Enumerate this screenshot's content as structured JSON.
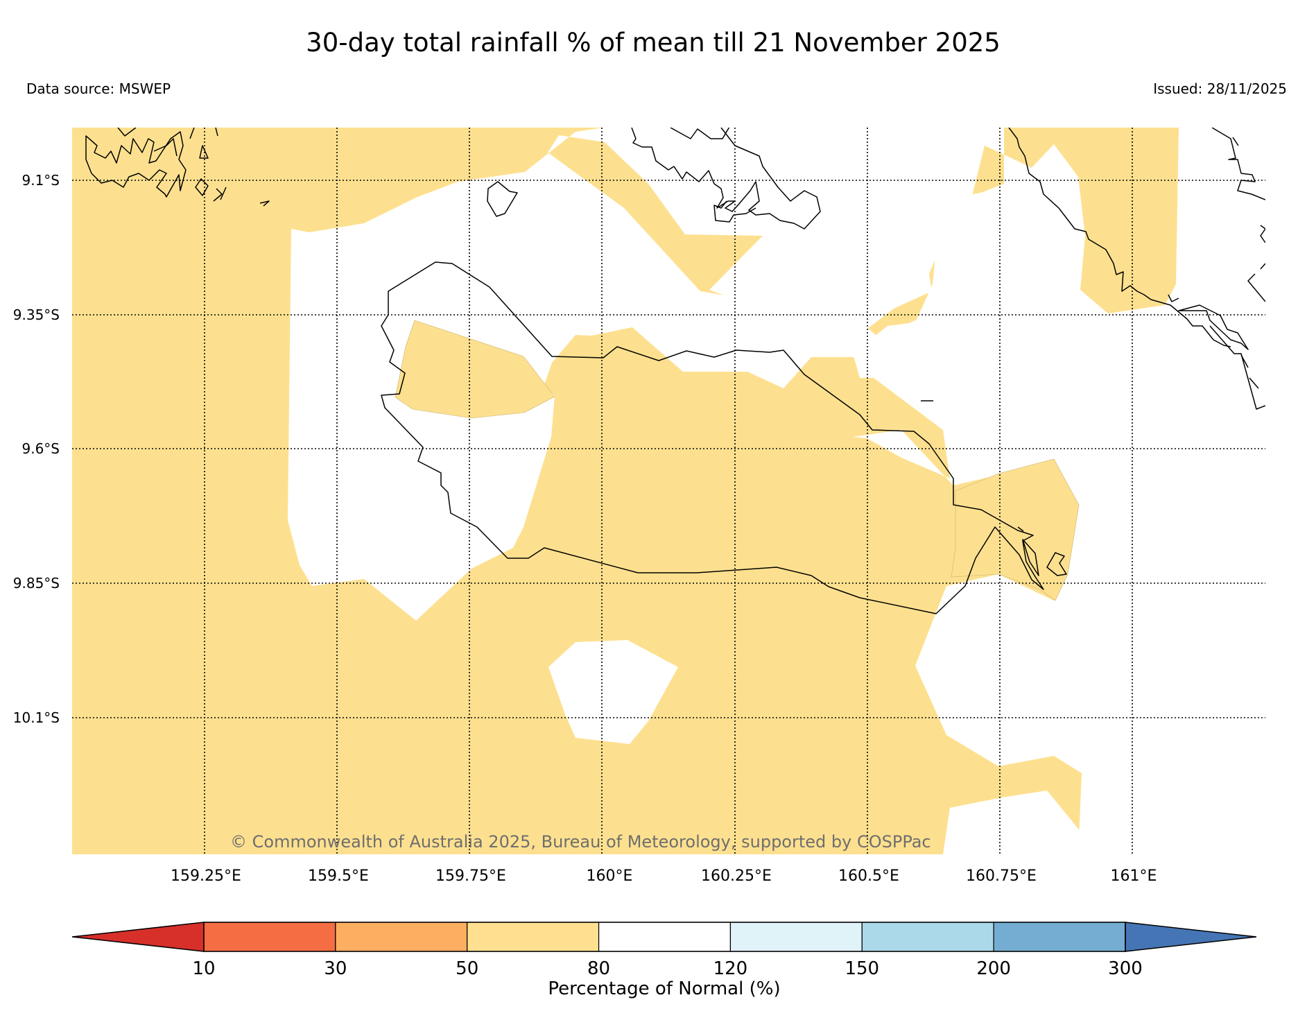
{
  "title": "30-day total rainfall % of mean till 21 November 2025",
  "data_source": "Data source: MSWEP",
  "issued": "Issued: 28/11/2025",
  "credit": "© Commonwealth of Australia 2025, Bureau of Meteorology, supported by COSPPac",
  "map": {
    "latitude_labels": [
      "9.1°S",
      "9.35°S",
      "9.6°S",
      "9.85°S",
      "10.1°S"
    ],
    "longitude_labels": [
      "159.25°E",
      "159.5°E",
      "159.75°E",
      "160°E",
      "160.25°E",
      "160.5°E",
      "160.75°E",
      "161°E"
    ],
    "fill_colors": {
      "50-80": "#fde08f",
      "80-120": "#ffffff"
    }
  },
  "colorbar": {
    "title": "Percentage of Normal (%)",
    "ticks": [
      "10",
      "30",
      "50",
      "80",
      "120",
      "150",
      "200",
      "300"
    ],
    "colors": [
      "#d7302a",
      "#f46d43",
      "#fdae61",
      "#fee090",
      "#ffffff",
      "#e0f3f8",
      "#abd9e9",
      "#74add1",
      "#4575b4"
    ]
  }
}
